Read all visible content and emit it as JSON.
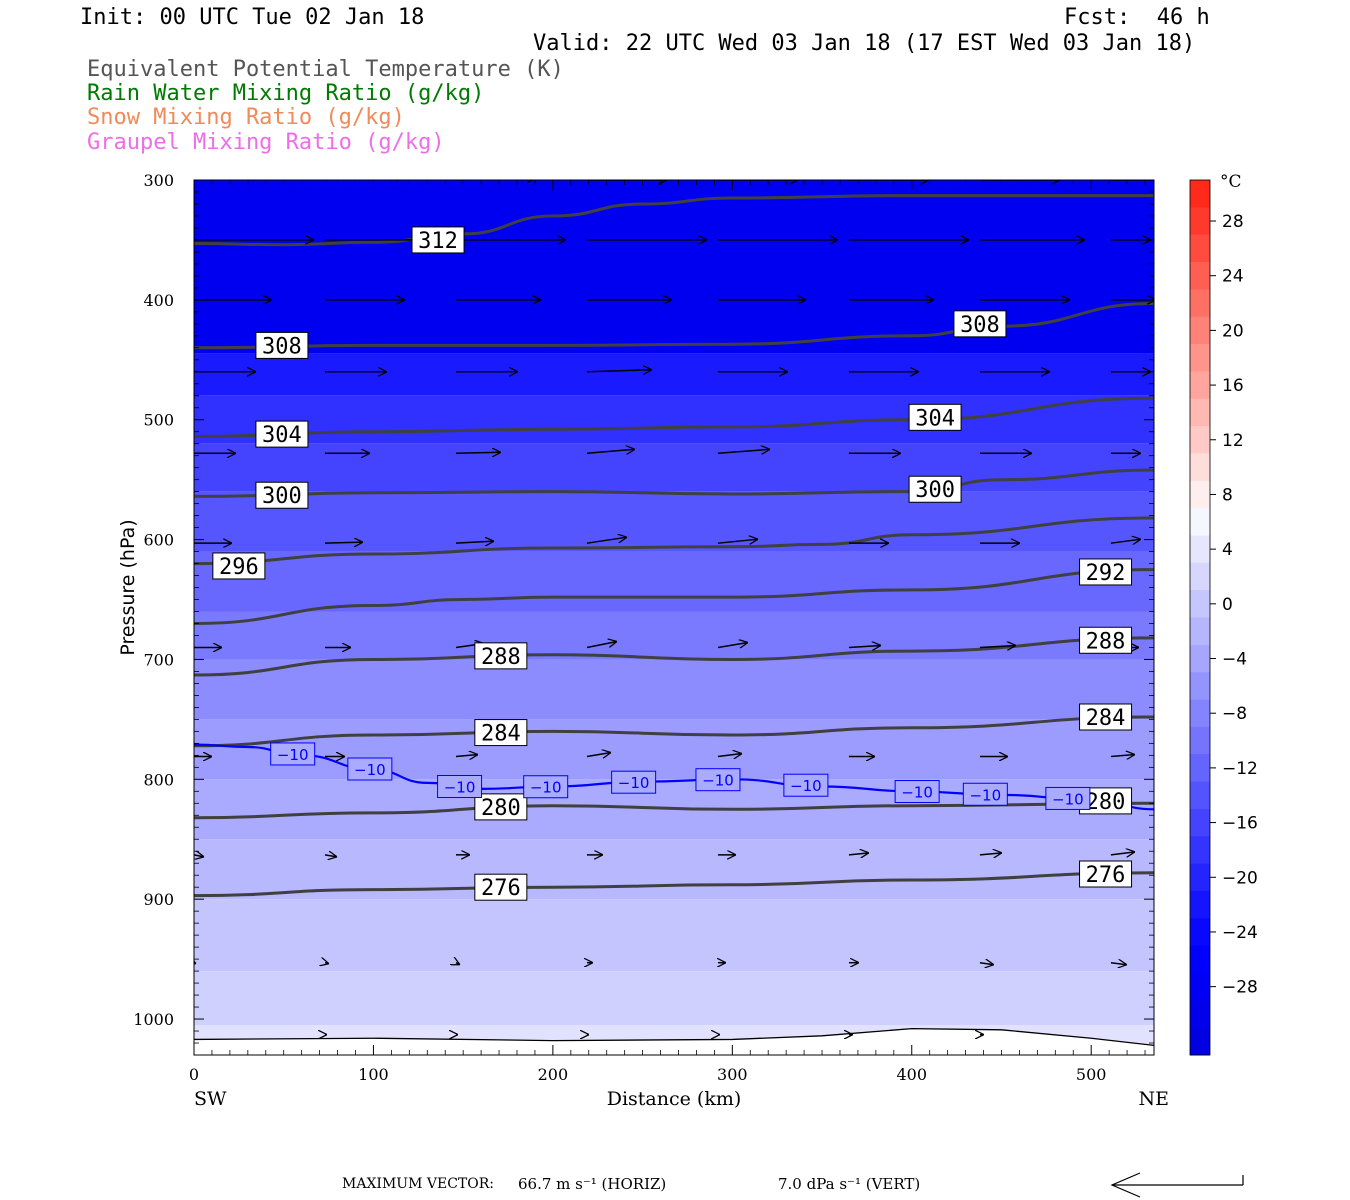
{
  "header": {
    "init": "Init: 00 UTC Tue 02 Jan 18",
    "fcst": "Fcst:  46 h",
    "valid": "Valid: 22 UTC Wed 03 Jan 18 (17 EST Wed 03 Jan 18)",
    "legend": [
      {
        "text": "Equivalent Potential Temperature (K)",
        "color": "#555555"
      },
      {
        "text": "Rain Water Mixing Ratio (g/kg)",
        "color": "#007a00"
      },
      {
        "text": "Snow Mixing Ratio (g/kg)",
        "color": "#f08a5a"
      },
      {
        "text": "Graupel Mixing Ratio (g/kg)",
        "color": "#ee6ee8"
      }
    ]
  },
  "footer": {
    "max_vector_label": "MAXIMUM VECTOR:",
    "horiz": "66.7 m s⁻¹ (HORIZ)",
    "vert": "7.0 dPa s⁻¹ (VERT)"
  },
  "chart_data": {
    "type": "cross-section",
    "xlabel": "Distance (km)",
    "ylabel": "Pressure (hPa)",
    "x_range": [
      0,
      535
    ],
    "y_range": [
      300,
      1030
    ],
    "x_ticks": [
      0,
      100,
      200,
      300,
      400,
      500
    ],
    "y_ticks": [
      300,
      400,
      500,
      600,
      700,
      800,
      900,
      1000
    ],
    "x_end_labels": {
      "left": "SW",
      "right": "NE"
    },
    "colorbar": {
      "unit": "°C",
      "labels": [
        "28",
        "24",
        "20",
        "16",
        "12",
        "8",
        "4",
        "0",
        "−4",
        "−8",
        "−12",
        "−16",
        "−20",
        "−24",
        "−28"
      ],
      "levels": [
        28,
        24,
        20,
        16,
        12,
        8,
        4,
        0,
        -4,
        -8,
        -12,
        -16,
        -20,
        -24,
        -28
      ],
      "colors_top_to_bottom": [
        "#ff2a1a",
        "#ff3a2c",
        "#ff4c3e",
        "#ff5e52",
        "#ff7064",
        "#ff8278",
        "#ff948a",
        "#ffa59e",
        "#ffb8b2",
        "#ffcac6",
        "#ffddda",
        "#ffeeee",
        "#f6f6ff",
        "#e6e6ff",
        "#d6d6ff",
        "#c6c6ff",
        "#b6b6ff",
        "#a6a6ff",
        "#9494ff",
        "#8484ff",
        "#7474ff",
        "#6464ff",
        "#5454ff",
        "#4444ff",
        "#3434ff",
        "#2424ff",
        "#1414ff",
        "#0808ff",
        "#0000ff",
        "#0000f5",
        "#0000ea",
        "#0000e0"
      ]
    },
    "temperature_fill_bands": [
      {
        "p_top": 300,
        "color": "#0000f0"
      },
      {
        "p_top": 445,
        "color": "#1a1aff"
      },
      {
        "p_top": 480,
        "color": "#3030ff"
      },
      {
        "p_top": 520,
        "color": "#4444ff"
      },
      {
        "p_top": 560,
        "color": "#5656ff"
      },
      {
        "p_top": 610,
        "color": "#6868ff"
      },
      {
        "p_top": 660,
        "color": "#7a7aff"
      },
      {
        "p_top": 700,
        "color": "#8c8cff"
      },
      {
        "p_top": 750,
        "color": "#9c9cff"
      },
      {
        "p_top": 800,
        "color": "#aaaaff"
      },
      {
        "p_top": 850,
        "color": "#b8b8ff"
      },
      {
        "p_top": 900,
        "color": "#c4c4ff"
      },
      {
        "p_top": 960,
        "color": "#d0d0ff"
      },
      {
        "p_top": 1005,
        "color": "#e2e2ff"
      }
    ],
    "theta_e_contours": [
      {
        "label": "312",
        "x": [
          0,
          50,
          100,
          150,
          200,
          250,
          300,
          400,
          535
        ],
        "p": [
          353,
          354,
          352,
          345,
          330,
          320,
          315,
          313,
          313
        ],
        "label_pos": [
          {
            "x": 136,
            "p": 350
          }
        ]
      },
      {
        "label": "308",
        "x": [
          0,
          100,
          200,
          300,
          400,
          450,
          535
        ],
        "p": [
          440,
          438,
          438,
          437,
          430,
          422,
          403
        ],
        "label_pos": [
          {
            "x": 49,
            "p": 438
          },
          {
            "x": 438,
            "p": 420
          }
        ]
      },
      {
        "label": "304",
        "x": [
          0,
          100,
          200,
          300,
          400,
          535
        ],
        "p": [
          514,
          510,
          508,
          506,
          500,
          482
        ],
        "label_pos": [
          {
            "x": 49,
            "p": 512
          },
          {
            "x": 413,
            "p": 498
          }
        ]
      },
      {
        "label": "300",
        "x": [
          0,
          100,
          200,
          300,
          400,
          450,
          535
        ],
        "p": [
          564,
          561,
          560,
          562,
          560,
          550,
          542
        ],
        "label_pos": [
          {
            "x": 49,
            "p": 563
          },
          {
            "x": 413,
            "p": 558
          }
        ]
      },
      {
        "label": "296",
        "x": [
          0,
          100,
          200,
          300,
          350,
          400,
          535
        ],
        "p": [
          620,
          612,
          607,
          606,
          604,
          596,
          582
        ],
        "label_pos": [
          {
            "x": 25,
            "p": 622
          }
        ]
      },
      {
        "label": "292",
        "x": [
          0,
          100,
          150,
          200,
          300,
          400,
          535
        ],
        "p": [
          670,
          655,
          650,
          648,
          648,
          642,
          625
        ],
        "label_pos": [
          {
            "x": 508,
            "p": 627
          }
        ]
      },
      {
        "label": "288",
        "x": [
          0,
          100,
          200,
          300,
          400,
          535
        ],
        "p": [
          713,
          700,
          696,
          700,
          693,
          682
        ],
        "label_pos": [
          {
            "x": 171,
            "p": 697
          },
          {
            "x": 508,
            "p": 684
          }
        ]
      },
      {
        "label": "284",
        "x": [
          0,
          100,
          200,
          300,
          400,
          535
        ],
        "p": [
          772,
          763,
          760,
          763,
          757,
          748
        ],
        "label_pos": [
          {
            "x": 171,
            "p": 761
          },
          {
            "x": 508,
            "p": 748
          }
        ]
      },
      {
        "label": "280",
        "x": [
          0,
          100,
          200,
          300,
          400,
          535
        ],
        "p": [
          832,
          828,
          822,
          825,
          822,
          820
        ],
        "label_pos": [
          {
            "x": 171,
            "p": 823
          },
          {
            "x": 508,
            "p": 818
          }
        ]
      },
      {
        "label": "276",
        "x": [
          0,
          100,
          200,
          300,
          400,
          535
        ],
        "p": [
          897,
          892,
          890,
          888,
          884,
          878
        ],
        "label_pos": [
          {
            "x": 171,
            "p": 890
          },
          {
            "x": 508,
            "p": 879
          }
        ]
      }
    ],
    "isotherm": {
      "label": "−10",
      "x": [
        0,
        30,
        60,
        100,
        130,
        160,
        200,
        250,
        300,
        350,
        400,
        450,
        500,
        535
      ],
      "p": [
        771,
        773,
        780,
        792,
        803,
        808,
        806,
        802,
        800,
        806,
        810,
        813,
        817,
        825
      ],
      "label_x": [
        55,
        98,
        148,
        196,
        245,
        292,
        341,
        403,
        441,
        487
      ]
    },
    "terrain": {
      "x": [
        0,
        100,
        200,
        300,
        350,
        400,
        450,
        500,
        535
      ],
      "p": [
        1017,
        1016,
        1018,
        1017,
        1014,
        1008,
        1009,
        1016,
        1022
      ]
    },
    "wind_vectors": [
      {
        "p": 300,
        "x": [
          0,
          73,
          146,
          219,
          292,
          365,
          438,
          511
        ],
        "dx": [
          80,
          80,
          80,
          80,
          80,
          80,
          80,
          80
        ],
        "dy": [
          -5,
          -4,
          -2,
          0,
          0,
          0,
          0,
          0
        ]
      },
      {
        "p": 350,
        "x": [
          0,
          73,
          146,
          219,
          292,
          365,
          438,
          511
        ],
        "dx": [
          120,
          115,
          110,
          120,
          120,
          120,
          105,
          40
        ],
        "dy": [
          0,
          0,
          0,
          0,
          0,
          0,
          0,
          0
        ]
      },
      {
        "p": 400,
        "x": [
          0,
          73,
          146,
          219,
          292,
          365,
          438,
          511
        ],
        "dx": [
          78,
          80,
          85,
          85,
          88,
          85,
          90,
          45
        ],
        "dy": [
          0,
          0,
          0,
          0,
          0,
          0,
          0,
          0
        ]
      },
      {
        "p": 460,
        "x": [
          0,
          73,
          146,
          219,
          292,
          365,
          438,
          511
        ],
        "dx": [
          62,
          62,
          62,
          65,
          70,
          70,
          70,
          40
        ],
        "dy": [
          0,
          0,
          0,
          -2,
          0,
          0,
          0,
          0
        ]
      },
      {
        "p": 528,
        "x": [
          0,
          73,
          146,
          219,
          292,
          365,
          438,
          511
        ],
        "dx": [
          42,
          45,
          45,
          48,
          52,
          52,
          52,
          30
        ],
        "dy": [
          0,
          0,
          -1,
          -4,
          -4,
          0,
          0,
          0
        ]
      },
      {
        "p": 603,
        "x": [
          0,
          73,
          146,
          219,
          292,
          365,
          438,
          511
        ],
        "dx": [
          38,
          38,
          38,
          40,
          40,
          40,
          40,
          30
        ],
        "dy": [
          0,
          -1,
          -2,
          -6,
          -4,
          0,
          0,
          -4
        ]
      },
      {
        "p": 690,
        "x": [
          0,
          73,
          146,
          219,
          292,
          365,
          438,
          511
        ],
        "dx": [
          28,
          26,
          28,
          30,
          30,
          32,
          36,
          28
        ],
        "dy": [
          0,
          0,
          -4,
          -6,
          -5,
          -2,
          -2,
          0
        ]
      },
      {
        "p": 781,
        "x": [
          0,
          73,
          146,
          219,
          292,
          365,
          438,
          511
        ],
        "dx": [
          18,
          20,
          22,
          24,
          24,
          26,
          28,
          24
        ],
        "dy": [
          0,
          0,
          -2,
          -4,
          -3,
          0,
          0,
          -2
        ]
      },
      {
        "p": 863,
        "x": [
          0,
          73,
          146,
          219,
          292,
          365,
          438,
          511
        ],
        "dx": [
          10,
          12,
          14,
          16,
          18,
          20,
          22,
          24
        ],
        "dy": [
          2,
          2,
          0,
          0,
          0,
          -2,
          -2,
          -3
        ]
      },
      {
        "p": 953,
        "x": [
          0,
          73,
          146,
          219,
          292,
          365,
          438,
          511
        ],
        "dx": [
          2,
          4,
          4,
          6,
          8,
          10,
          14,
          16
        ],
        "dy": [
          1,
          1,
          2,
          0,
          0,
          0,
          2,
          2
        ]
      },
      {
        "p": 1013,
        "x": [
          73,
          146,
          219,
          292,
          365,
          438
        ],
        "dx": [
          2,
          2,
          2,
          2,
          4,
          4
        ],
        "dy": [
          0,
          0,
          0,
          0,
          0,
          0
        ]
      }
    ]
  }
}
